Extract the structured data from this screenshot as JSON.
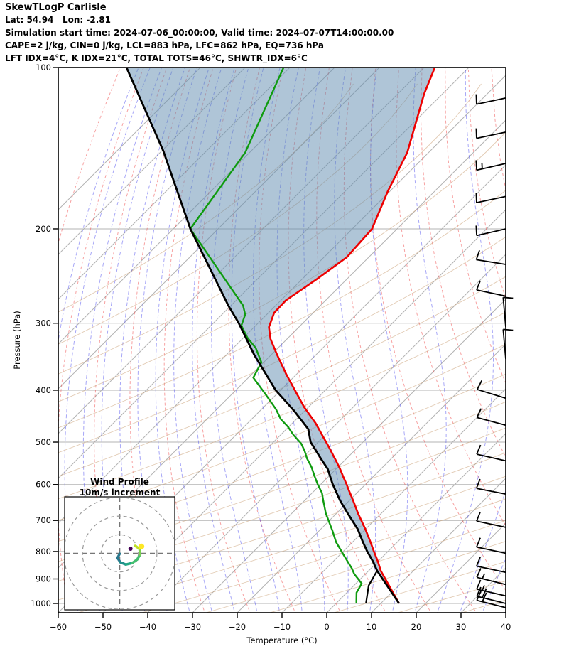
{
  "header": {
    "line1": "SkewTLogP Carlisle",
    "line2": "Lat: 54.94   Lon: -2.81",
    "line3": "Simulation start time: 2024-07-06_00:00:00, Valid time: 2024-07-07T14:00:00.00",
    "line4": "CAPE=2 j/kg, CIN=0 j/kg, LCL=883 hPa, LFC=862 hPa, EQ=736 hPa",
    "line5": "LFT IDX=4°C, K IDX=21°C, TOTAL TOTS=46°C, SHWTR_IDX=6°C"
  },
  "axes": {
    "xlabel": "Temperature (°C)",
    "ylabel": "Pressure (hPa)",
    "x_ticks": [
      -60,
      -50,
      -40,
      -30,
      -20,
      -10,
      0,
      10,
      20,
      30,
      40
    ],
    "y_ticks": [
      100,
      200,
      300,
      400,
      500,
      600,
      700,
      800,
      900,
      1000
    ],
    "x_range": [
      -60,
      40
    ],
    "p_range": [
      100,
      1050
    ]
  },
  "inset": {
    "title": "Wind Profile",
    "subtitle": "10m/s increment",
    "rings_ms": [
      10,
      20,
      30
    ]
  },
  "chart_data": {
    "type": "skewt-logp",
    "title": "SkewTLogP Carlisle",
    "xlabel": "Temperature (°C)",
    "ylabel": "Pressure (hPa)",
    "temperature_profile": [
      [
        100,
        -97.6
      ],
      [
        112,
        -94.1
      ],
      [
        144,
        -84.8
      ],
      [
        170,
        -80.5
      ],
      [
        200,
        -75.6
      ],
      [
        226,
        -74.9
      ],
      [
        248,
        -76.7
      ],
      [
        272,
        -78.9
      ],
      [
        287,
        -78.7
      ],
      [
        305,
        -76.7
      ],
      [
        321,
        -73.7
      ],
      [
        344,
        -68.6
      ],
      [
        374,
        -62.2
      ],
      [
        400,
        -56.8
      ],
      [
        430,
        -51.0
      ],
      [
        461,
        -44.8
      ],
      [
        491,
        -39.7
      ],
      [
        512,
        -36.3
      ],
      [
        540,
        -32.1
      ],
      [
        559,
        -29.4
      ],
      [
        580,
        -26.7
      ],
      [
        598,
        -24.4
      ],
      [
        615,
        -22.4
      ],
      [
        644,
        -19.0
      ],
      [
        679,
        -15.2
      ],
      [
        727,
        -10.0
      ],
      [
        766,
        -6.2
      ],
      [
        798,
        -3.3
      ],
      [
        835,
        0.0
      ],
      [
        869,
        2.7
      ],
      [
        1000,
        14.1
      ]
    ],
    "dewpoint_profile": [
      [
        100,
        -131.4
      ],
      [
        144,
        -121.0
      ],
      [
        200,
        -116.2
      ],
      [
        232,
        -103.2
      ],
      [
        278,
        -87.3
      ],
      [
        289,
        -84.8
      ],
      [
        303,
        -83.2
      ],
      [
        319,
        -79.2
      ],
      [
        334,
        -74.9
      ],
      [
        355,
        -70.5
      ],
      [
        379,
        -68.9
      ],
      [
        406,
        -62.7
      ],
      [
        434,
        -56.8
      ],
      [
        453,
        -53.5
      ],
      [
        468,
        -50.2
      ],
      [
        485,
        -47.1
      ],
      [
        503,
        -43.5
      ],
      [
        519,
        -41.1
      ],
      [
        536,
        -38.9
      ],
      [
        556,
        -36.0
      ],
      [
        578,
        -33.3
      ],
      [
        601,
        -30.5
      ],
      [
        622,
        -27.8
      ],
      [
        644,
        -25.7
      ],
      [
        679,
        -22.4
      ],
      [
        731,
        -17.1
      ],
      [
        768,
        -13.7
      ],
      [
        814,
        -8.9
      ],
      [
        860,
        -4.3
      ],
      [
        881,
        -2.5
      ],
      [
        918,
        1.3
      ],
      [
        955,
        2.2
      ],
      [
        997,
        4.4
      ]
    ],
    "parcel_profile": [
      [
        100,
        -166.5
      ],
      [
        143,
        -139.7
      ],
      [
        200,
        -116.2
      ],
      [
        278,
        -90.6
      ],
      [
        300,
        -84.3
      ],
      [
        344,
        -73.7
      ],
      [
        400,
        -61.1
      ],
      [
        437,
        -52.4
      ],
      [
        473,
        -45.1
      ],
      [
        500,
        -41.7
      ],
      [
        540,
        -35.2
      ],
      [
        561,
        -31.9
      ],
      [
        598,
        -27.5
      ],
      [
        615,
        -25.4
      ],
      [
        644,
        -21.9
      ],
      [
        679,
        -17.5
      ],
      [
        727,
        -11.7
      ],
      [
        766,
        -7.9
      ],
      [
        798,
        -4.8
      ],
      [
        835,
        -1.1
      ],
      [
        869,
        1.9
      ],
      [
        1000,
        14.1
      ]
    ],
    "parcel_lcl_branch": [
      [
        869,
        1.9
      ],
      [
        926,
        3.3
      ],
      [
        1000,
        6.7
      ]
    ],
    "wind_barbs": [
      [
        114,
        258,
        10
      ],
      [
        132,
        258,
        10
      ],
      [
        151,
        257,
        15
      ],
      [
        174,
        258,
        10
      ],
      [
        200,
        257,
        10
      ],
      [
        233,
        279,
        10
      ],
      [
        267,
        282,
        10
      ],
      [
        305,
        355,
        10
      ],
      [
        350,
        355,
        10
      ],
      [
        414,
        287,
        10
      ],
      [
        465,
        285,
        10
      ],
      [
        542,
        283,
        10
      ],
      [
        625,
        281,
        10
      ],
      [
        721,
        282,
        10
      ],
      [
        806,
        282,
        10
      ],
      [
        875,
        282,
        10
      ],
      [
        922,
        284,
        15
      ],
      [
        968,
        283,
        15
      ],
      [
        1000,
        284,
        20
      ],
      [
        1018,
        284,
        20
      ]
    ],
    "hodograph": {
      "trace_uv": [
        [
          0,
          -0.2
        ],
        [
          -1.2,
          -2.5
        ],
        [
          0.4,
          -4.8
        ],
        [
          3.3,
          -6.0
        ],
        [
          6.7,
          -5.2
        ],
        [
          9.4,
          -3.3
        ],
        [
          11.0,
          -0.6
        ],
        [
          10.6,
          2.5
        ],
        [
          8.3,
          4.0
        ]
      ],
      "marker_yellow_uv": [
        11.7,
        3.7
      ],
      "marker_purple_uv": [
        5.8,
        2.5
      ],
      "rings_ms": [
        10,
        20,
        30
      ]
    },
    "colors": {
      "temperature": "#ee0000",
      "dewpoint": "#0f9b0f",
      "parcel": "#000000",
      "cape_shade": "rgba(96,140,176,0.5)",
      "isotherm": "#b3b3b3",
      "gridline": "#b3b3b3",
      "dry_adiabat": "rgba(240,70,70,0.5)",
      "moist_adiabat": "rgba(80,80,240,0.5)",
      "aux_line": "rgba(205,165,125,0.6)"
    }
  }
}
